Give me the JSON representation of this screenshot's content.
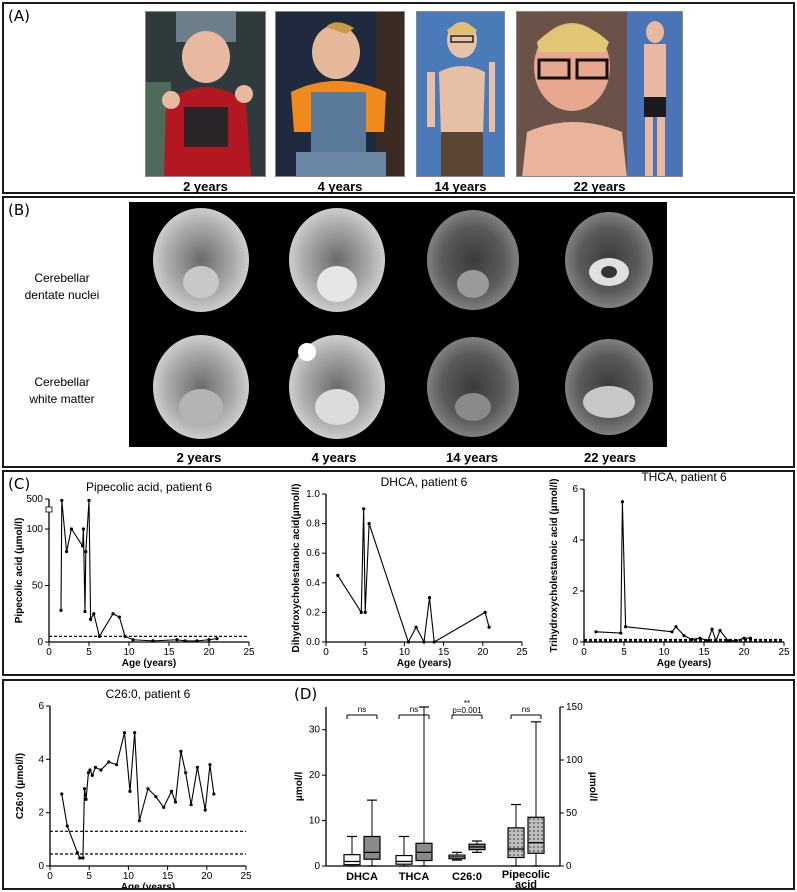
{
  "panel_a": {
    "label": "(A)",
    "photos": [
      {
        "caption": "2 years",
        "subject": "toddler photo"
      },
      {
        "caption": "4 years",
        "subject": "child photo"
      },
      {
        "caption": "14 years",
        "subject": "adolescent photo"
      },
      {
        "caption": "22 years",
        "subject": "adult photos"
      }
    ]
  },
  "panel_b": {
    "label": "(B)",
    "rows": [
      {
        "label_line1": "Cerebellar",
        "label_line2": "dentate nuclei"
      },
      {
        "label_line1": "Cerebellar",
        "label_line2": "white matter"
      }
    ],
    "ages": [
      "2 years",
      "4 years",
      "14 years",
      "22 years"
    ]
  },
  "panel_c": {
    "label": "(C)"
  },
  "panel_d": {
    "label": "(D)"
  },
  "chart_data": [
    {
      "id": "pipecolic",
      "type": "line",
      "title": "Pipecolic acid, patient 6",
      "xlabel": "Age (years)",
      "ylabel": "Pipecolic acid (μmol/l)",
      "xlim": [
        0,
        25
      ],
      "xticks": [
        0,
        5,
        10,
        15,
        20,
        25
      ],
      "yticks": [
        "0",
        "50",
        "100",
        "500"
      ],
      "axis_break": true,
      "ylim": [
        0,
        500
      ],
      "x": [
        1.5,
        1.6,
        2.2,
        2.8,
        4.2,
        4.3,
        4.5,
        4.6,
        5.0,
        5.2,
        5.6,
        6.3,
        8.0,
        8.8,
        9.5,
        10.5,
        13,
        16,
        17,
        18.5,
        20,
        21
      ],
      "y": [
        28,
        480,
        80,
        100,
        85,
        100,
        27,
        80,
        480,
        20,
        25,
        5,
        25,
        22,
        5,
        2,
        1,
        2,
        1,
        1,
        2,
        3
      ],
      "reference_lines": [
        5
      ]
    },
    {
      "id": "dhca",
      "type": "line",
      "title": "DHCA, patient 6",
      "xlabel": "Age (years)",
      "ylabel": "Dihydroxycholestanoic acid(μmol/l)",
      "xlim": [
        0,
        25
      ],
      "ylim": [
        0,
        1.0
      ],
      "xticks": [
        0,
        5,
        10,
        15,
        20,
        25
      ],
      "yticks": [
        "0.0",
        "0.2",
        "0.4",
        "0.6",
        "0.8",
        "1.0"
      ],
      "x": [
        1.5,
        4.5,
        4.8,
        5.0,
        5.5,
        10.5,
        11.5,
        12.5,
        13.2,
        13.8,
        20.3,
        20.8
      ],
      "y": [
        0.45,
        0.2,
        0.9,
        0.2,
        0.8,
        0.0,
        0.1,
        0.0,
        0.3,
        0.0,
        0.2,
        0.1
      ]
    },
    {
      "id": "thca",
      "type": "line",
      "title": "THCA, patient 6",
      "xlabel": "Age (years)",
      "ylabel": "Trihydroxycholestanoic acid (μmol/l)",
      "xlim": [
        0,
        25
      ],
      "ylim": [
        0,
        6
      ],
      "xticks": [
        0,
        5,
        10,
        15,
        20,
        25
      ],
      "yticks": [
        "0",
        "2",
        "4",
        "6"
      ],
      "x": [
        1.5,
        4.6,
        4.8,
        5.2,
        11.0,
        11.5,
        12.5,
        13.5,
        14.5,
        15.5,
        16.0,
        16.5,
        17.0,
        18.0,
        19.0,
        20.0,
        20.8
      ],
      "y": [
        0.4,
        0.35,
        5.5,
        0.6,
        0.4,
        0.6,
        0.25,
        0.1,
        0.15,
        0.05,
        0.5,
        0.05,
        0.45,
        0.05,
        0.05,
        0.15,
        0.15
      ],
      "reference_lines": [
        0.05,
        0.1
      ]
    },
    {
      "id": "c26",
      "type": "line",
      "title": "C26:0, patient 6",
      "xlabel": "Age (years)",
      "ylabel": "C26:0 (μmol/l)",
      "xlim": [
        0,
        25
      ],
      "ylim": [
        0,
        6
      ],
      "xticks": [
        0,
        5,
        10,
        15,
        20,
        25
      ],
      "yticks": [
        "0",
        "2",
        "4",
        "6"
      ],
      "x": [
        1.5,
        2.2,
        3.5,
        3.8,
        4.2,
        4.4,
        4.6,
        4.9,
        5.1,
        5.4,
        5.8,
        6.5,
        7.5,
        8.5,
        9.5,
        10.2,
        10.8,
        11.4,
        12.5,
        13.5,
        14.5,
        15.5,
        16.0,
        16.7,
        17.3,
        18.0,
        18.8,
        19.8,
        20.4,
        20.9
      ],
      "y": [
        2.7,
        1.5,
        0.5,
        0.3,
        0.3,
        2.9,
        2.5,
        3.5,
        3.6,
        3.4,
        3.7,
        3.6,
        3.9,
        3.8,
        5.0,
        2.8,
        5.0,
        1.7,
        2.9,
        2.6,
        2.2,
        2.8,
        2.4,
        4.3,
        3.5,
        2.3,
        3.7,
        2.1,
        3.8,
        2.7
      ],
      "reference_lines": [
        1.3,
        0.45
      ]
    },
    {
      "id": "boxplots",
      "type": "box",
      "ylabel_left": "μmol/l",
      "ylabel_right": "μmol/l",
      "ylim_left": [
        0,
        35
      ],
      "ylim_right": [
        0,
        150
      ],
      "yticks_left": [
        "0",
        "10",
        "20",
        "30"
      ],
      "yticks_right": [
        "0",
        "50",
        "100",
        "150"
      ],
      "groups": [
        {
          "label": "DHCA",
          "sig": "ns",
          "boxes": [
            {
              "fill": "white",
              "min": 0,
              "q1": 0.3,
              "median": 1.0,
              "q3": 2.5,
              "max": 6.5
            },
            {
              "fill": "grey",
              "min": 0,
              "q1": 1.5,
              "median": 3.0,
              "q3": 6.5,
              "max": 14.5
            }
          ]
        },
        {
          "label": "THCA",
          "sig": "ns",
          "boxes": [
            {
              "fill": "white",
              "min": 0,
              "q1": 0.4,
              "median": 1.0,
              "q3": 2.3,
              "max": 6.5
            },
            {
              "fill": "grey",
              "min": 0,
              "q1": 1.2,
              "median": 3.0,
              "q3": 5.0,
              "max": 35
            }
          ]
        },
        {
          "label": "C26:0",
          "sig": "**",
          "sig_text": "p=0.001",
          "boxes": [
            {
              "fill": "white",
              "min": 1.3,
              "q1": 1.6,
              "median": 2.0,
              "q3": 2.4,
              "max": 3.0
            },
            {
              "fill": "grey",
              "min": 3.0,
              "q1": 3.6,
              "median": 4.2,
              "q3": 4.8,
              "max": 5.5
            }
          ]
        },
        {
          "label_line1": "Pipecolic",
          "label_line2": "acid",
          "sig": "ns",
          "axis": "right",
          "boxes": [
            {
              "fill": "dotted",
              "min": 0,
              "q1": 8,
              "median": 16,
              "q3": 36,
              "max": 58
            },
            {
              "fill": "dotted",
              "min": 0,
              "q1": 12,
              "median": 22,
              "q3": 46,
              "max": 136
            }
          ]
        }
      ]
    }
  ]
}
